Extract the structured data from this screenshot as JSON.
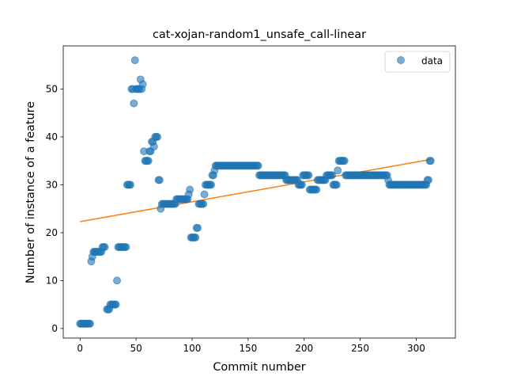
{
  "chart_data": {
    "type": "scatter",
    "title": "cat-xojan-random1_unsafe_call-linear",
    "xlabel": "Commit number",
    "ylabel": "Number of instance of a feature",
    "xlim": [
      -15,
      335
    ],
    "ylim": [
      -2,
      59
    ],
    "xticks": [
      0,
      50,
      100,
      150,
      200,
      250,
      300
    ],
    "yticks": [
      0,
      10,
      20,
      30,
      40,
      50
    ],
    "xtick_labels": [
      "0",
      "50",
      "100",
      "150",
      "200",
      "250",
      "300"
    ],
    "ytick_labels": [
      "0",
      "10",
      "20",
      "30",
      "40",
      "50"
    ],
    "grid": false,
    "legend": {
      "position": "top-right",
      "entries": [
        "data"
      ]
    },
    "colors": {
      "data": "#1f77b4",
      "fit": "#ff7f0e"
    },
    "series": [
      {
        "name": "data",
        "type": "scatter",
        "points": [
          [
            0,
            1
          ],
          [
            1,
            1
          ],
          [
            2,
            1
          ],
          [
            3,
            1
          ],
          [
            4,
            1
          ],
          [
            5,
            1
          ],
          [
            6,
            1
          ],
          [
            7,
            1
          ],
          [
            8,
            1
          ],
          [
            9,
            1
          ],
          [
            10,
            14
          ],
          [
            11,
            15
          ],
          [
            12,
            16
          ],
          [
            13,
            16
          ],
          [
            14,
            16
          ],
          [
            15,
            16
          ],
          [
            16,
            16
          ],
          [
            17,
            16
          ],
          [
            18,
            16
          ],
          [
            19,
            16
          ],
          [
            20,
            17
          ],
          [
            21,
            17
          ],
          [
            22,
            17
          ],
          [
            24,
            4
          ],
          [
            25,
            4
          ],
          [
            26,
            4
          ],
          [
            27,
            5
          ],
          [
            28,
            5
          ],
          [
            29,
            5
          ],
          [
            30,
            5
          ],
          [
            31,
            5
          ],
          [
            32,
            5
          ],
          [
            33,
            10
          ],
          [
            34,
            17
          ],
          [
            35,
            17
          ],
          [
            36,
            17
          ],
          [
            37,
            17
          ],
          [
            38,
            17
          ],
          [
            39,
            17
          ],
          [
            40,
            17
          ],
          [
            41,
            17
          ],
          [
            42,
            30
          ],
          [
            43,
            30
          ],
          [
            44,
            30
          ],
          [
            45,
            30
          ],
          [
            46,
            50
          ],
          [
            47,
            50
          ],
          [
            48,
            47
          ],
          [
            49,
            56
          ],
          [
            50,
            50
          ],
          [
            51,
            50
          ],
          [
            52,
            50
          ],
          [
            53,
            50
          ],
          [
            54,
            52
          ],
          [
            55,
            50
          ],
          [
            56,
            51
          ],
          [
            57,
            37
          ],
          [
            58,
            35
          ],
          [
            59,
            35
          ],
          [
            60,
            35
          ],
          [
            61,
            35
          ],
          [
            62,
            37
          ],
          [
            63,
            37
          ],
          [
            64,
            39
          ],
          [
            65,
            39
          ],
          [
            66,
            38
          ],
          [
            67,
            40
          ],
          [
            68,
            40
          ],
          [
            69,
            40
          ],
          [
            70,
            31
          ],
          [
            71,
            31
          ],
          [
            72,
            25
          ],
          [
            73,
            26
          ],
          [
            74,
            26
          ],
          [
            75,
            26
          ],
          [
            76,
            26
          ],
          [
            77,
            26
          ],
          [
            78,
            26
          ],
          [
            79,
            26
          ],
          [
            80,
            26
          ],
          [
            81,
            26
          ],
          [
            82,
            26
          ],
          [
            83,
            26
          ],
          [
            84,
            26
          ],
          [
            85,
            26
          ],
          [
            86,
            27
          ],
          [
            87,
            27
          ],
          [
            88,
            27
          ],
          [
            89,
            27
          ],
          [
            90,
            27
          ],
          [
            91,
            27
          ],
          [
            92,
            27
          ],
          [
            93,
            27
          ],
          [
            94,
            27
          ],
          [
            95,
            27
          ],
          [
            96,
            27
          ],
          [
            97,
            28
          ],
          [
            98,
            29
          ],
          [
            99,
            19
          ],
          [
            100,
            19
          ],
          [
            101,
            19
          ],
          [
            102,
            19
          ],
          [
            103,
            19
          ],
          [
            104,
            21
          ],
          [
            105,
            21
          ],
          [
            106,
            26
          ],
          [
            107,
            26
          ],
          [
            108,
            26
          ],
          [
            109,
            26
          ],
          [
            110,
            26
          ],
          [
            111,
            28
          ],
          [
            112,
            30
          ],
          [
            113,
            30
          ],
          [
            114,
            30
          ],
          [
            115,
            30
          ],
          [
            116,
            30
          ],
          [
            117,
            30
          ],
          [
            118,
            32
          ],
          [
            119,
            32
          ],
          [
            120,
            33
          ],
          [
            121,
            34
          ],
          [
            122,
            34
          ],
          [
            123,
            34
          ],
          [
            124,
            34
          ],
          [
            125,
            34
          ],
          [
            126,
            34
          ],
          [
            127,
            34
          ],
          [
            128,
            34
          ],
          [
            129,
            34
          ],
          [
            130,
            34
          ],
          [
            131,
            34
          ],
          [
            132,
            34
          ],
          [
            133,
            34
          ],
          [
            134,
            34
          ],
          [
            135,
            34
          ],
          [
            136,
            34
          ],
          [
            137,
            34
          ],
          [
            138,
            34
          ],
          [
            139,
            34
          ],
          [
            140,
            34
          ],
          [
            141,
            34
          ],
          [
            142,
            34
          ],
          [
            143,
            34
          ],
          [
            144,
            34
          ],
          [
            145,
            34
          ],
          [
            146,
            34
          ],
          [
            147,
            34
          ],
          [
            148,
            34
          ],
          [
            149,
            34
          ],
          [
            150,
            34
          ],
          [
            151,
            34
          ],
          [
            152,
            34
          ],
          [
            153,
            34
          ],
          [
            154,
            34
          ],
          [
            155,
            34
          ],
          [
            156,
            34
          ],
          [
            157,
            34
          ],
          [
            158,
            34
          ],
          [
            159,
            34
          ],
          [
            160,
            32
          ],
          [
            161,
            32
          ],
          [
            162,
            32
          ],
          [
            163,
            32
          ],
          [
            164,
            32
          ],
          [
            165,
            32
          ],
          [
            166,
            32
          ],
          [
            167,
            32
          ],
          [
            168,
            32
          ],
          [
            169,
            32
          ],
          [
            170,
            32
          ],
          [
            171,
            32
          ],
          [
            172,
            32
          ],
          [
            173,
            32
          ],
          [
            174,
            32
          ],
          [
            175,
            32
          ],
          [
            176,
            32
          ],
          [
            177,
            32
          ],
          [
            178,
            32
          ],
          [
            179,
            32
          ],
          [
            180,
            32
          ],
          [
            181,
            32
          ],
          [
            182,
            32
          ],
          [
            183,
            32
          ],
          [
            184,
            31
          ],
          [
            185,
            31
          ],
          [
            186,
            31
          ],
          [
            187,
            31
          ],
          [
            188,
            31
          ],
          [
            189,
            31
          ],
          [
            190,
            31
          ],
          [
            191,
            31
          ],
          [
            192,
            31
          ],
          [
            193,
            31
          ],
          [
            194,
            31
          ],
          [
            195,
            30
          ],
          [
            196,
            30
          ],
          [
            197,
            30
          ],
          [
            198,
            30
          ],
          [
            199,
            32
          ],
          [
            200,
            32
          ],
          [
            201,
            32
          ],
          [
            202,
            32
          ],
          [
            203,
            32
          ],
          [
            204,
            32
          ],
          [
            205,
            29
          ],
          [
            206,
            29
          ],
          [
            207,
            29
          ],
          [
            208,
            29
          ],
          [
            209,
            29
          ],
          [
            210,
            29
          ],
          [
            211,
            29
          ],
          [
            212,
            31
          ],
          [
            213,
            31
          ],
          [
            214,
            31
          ],
          [
            215,
            31
          ],
          [
            216,
            31
          ],
          [
            217,
            31
          ],
          [
            218,
            31
          ],
          [
            219,
            31
          ],
          [
            220,
            32
          ],
          [
            221,
            32
          ],
          [
            222,
            32
          ],
          [
            223,
            32
          ],
          [
            224,
            32
          ],
          [
            225,
            32
          ],
          [
            226,
            30
          ],
          [
            227,
            30
          ],
          [
            228,
            30
          ],
          [
            229,
            30
          ],
          [
            230,
            33
          ],
          [
            231,
            35
          ],
          [
            232,
            35
          ],
          [
            233,
            35
          ],
          [
            234,
            35
          ],
          [
            235,
            35
          ],
          [
            236,
            35
          ],
          [
            237,
            32
          ],
          [
            238,
            32
          ],
          [
            239,
            32
          ],
          [
            240,
            32
          ],
          [
            241,
            32
          ],
          [
            242,
            32
          ],
          [
            243,
            32
          ],
          [
            244,
            32
          ],
          [
            245,
            32
          ],
          [
            246,
            32
          ],
          [
            247,
            32
          ],
          [
            248,
            32
          ],
          [
            249,
            32
          ],
          [
            250,
            32
          ],
          [
            251,
            32
          ],
          [
            252,
            32
          ],
          [
            253,
            32
          ],
          [
            254,
            32
          ],
          [
            255,
            32
          ],
          [
            256,
            32
          ],
          [
            257,
            32
          ],
          [
            258,
            32
          ],
          [
            259,
            32
          ],
          [
            260,
            32
          ],
          [
            261,
            32
          ],
          [
            262,
            32
          ],
          [
            263,
            32
          ],
          [
            264,
            32
          ],
          [
            265,
            32
          ],
          [
            266,
            32
          ],
          [
            267,
            32
          ],
          [
            268,
            32
          ],
          [
            269,
            32
          ],
          [
            270,
            32
          ],
          [
            271,
            32
          ],
          [
            272,
            32
          ],
          [
            273,
            32
          ],
          [
            274,
            32
          ],
          [
            275,
            31
          ],
          [
            276,
            30
          ],
          [
            277,
            30
          ],
          [
            278,
            30
          ],
          [
            279,
            30
          ],
          [
            280,
            30
          ],
          [
            281,
            30
          ],
          [
            282,
            30
          ],
          [
            283,
            30
          ],
          [
            284,
            30
          ],
          [
            285,
            30
          ],
          [
            286,
            30
          ],
          [
            287,
            30
          ],
          [
            288,
            30
          ],
          [
            289,
            30
          ],
          [
            290,
            30
          ],
          [
            291,
            30
          ],
          [
            292,
            30
          ],
          [
            293,
            30
          ],
          [
            294,
            30
          ],
          [
            295,
            30
          ],
          [
            296,
            30
          ],
          [
            297,
            30
          ],
          [
            298,
            30
          ],
          [
            299,
            30
          ],
          [
            300,
            30
          ],
          [
            301,
            30
          ],
          [
            302,
            30
          ],
          [
            303,
            30
          ],
          [
            304,
            30
          ],
          [
            305,
            30
          ],
          [
            306,
            30
          ],
          [
            307,
            30
          ],
          [
            308,
            30
          ],
          [
            309,
            30
          ],
          [
            310,
            31
          ],
          [
            311,
            31
          ],
          [
            312,
            35
          ],
          [
            313,
            35
          ]
        ]
      },
      {
        "type": "line",
        "x": [
          0,
          313
        ],
        "y": [
          22.3,
          35.3
        ]
      }
    ]
  }
}
